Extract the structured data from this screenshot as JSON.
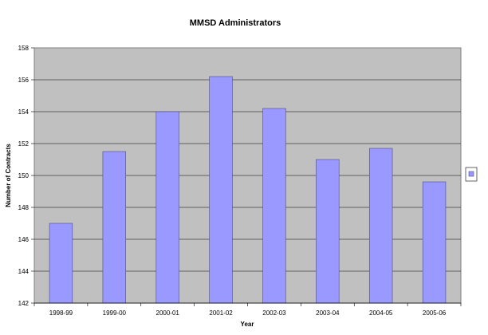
{
  "chart_data": {
    "type": "bar",
    "title": "MMSD Administrators",
    "xlabel": "Year",
    "ylabel": "Number of Contracts",
    "categories": [
      "1998-99",
      "1999-00",
      "2000-01",
      "2001-02",
      "2002-03",
      "2003-04",
      "2004-05",
      "2005-06"
    ],
    "series": [
      {
        "values": [
          147,
          151.5,
          154,
          156.2,
          154.2,
          151,
          151.7,
          149.6
        ]
      }
    ],
    "ylim": [
      142,
      158
    ],
    "yticks": [
      "142",
      "144",
      "146",
      "148",
      "150",
      "152",
      "154",
      "156",
      "158"
    ],
    "grid": true,
    "legend_position": "right",
    "colors": {
      "bar": "#9999ff",
      "bar_stroke": "#4d4d80",
      "plot_background": "#c0c0c0",
      "gridline": "#000000"
    }
  }
}
